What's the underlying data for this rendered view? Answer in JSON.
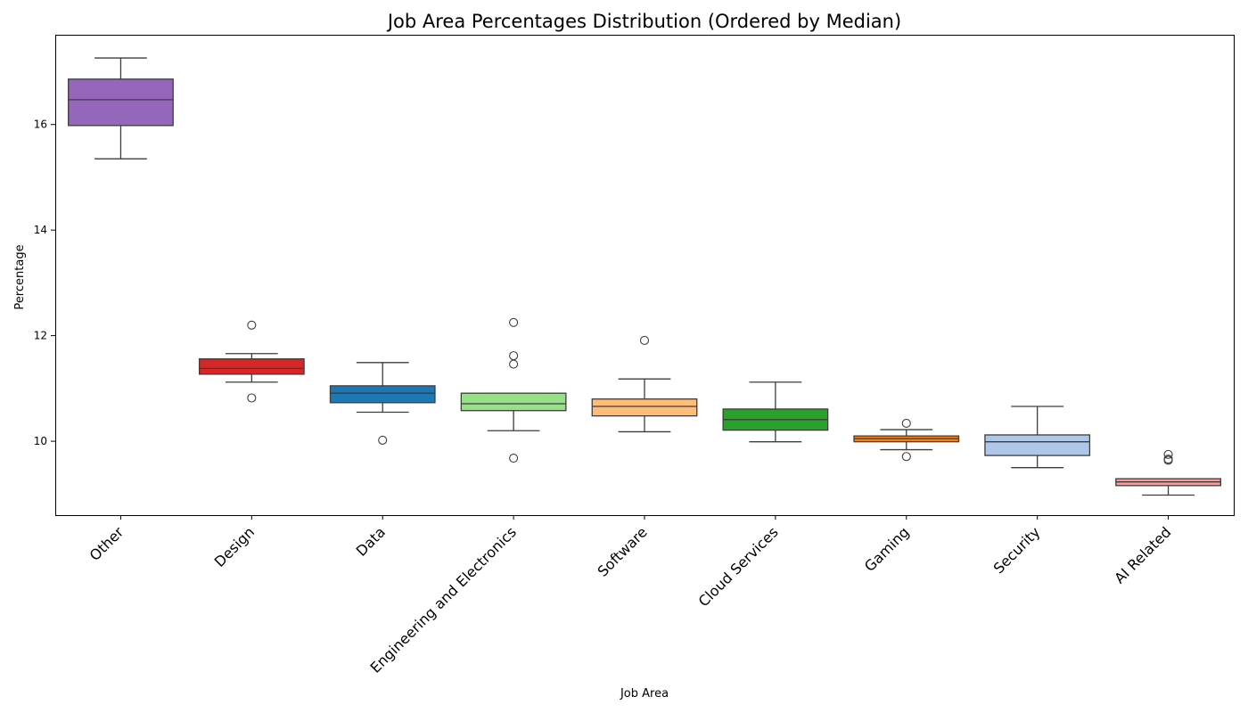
{
  "chart_data": {
    "type": "box",
    "title": "Job Area Percentages Distribution (Ordered by Median)",
    "xlabel": "Job Area",
    "ylabel": "Percentage",
    "ylim": [
      8.6,
      17.7
    ],
    "yticks": [
      10,
      12,
      14,
      16
    ],
    "grid": false,
    "categories": [
      "Other",
      "Design",
      "Data",
      "Engineering and Electronics",
      "Software",
      "Cloud Services",
      "Gaming",
      "Security",
      "AI Related"
    ],
    "boxes": [
      {
        "category": "Other",
        "whisker_low": 15.35,
        "q1": 15.98,
        "median": 16.47,
        "q3": 16.86,
        "whisker_high": 17.26,
        "outliers": [],
        "color": "#9467bd"
      },
      {
        "category": "Design",
        "whisker_low": 11.12,
        "q1": 11.27,
        "median": 11.38,
        "q3": 11.56,
        "whisker_high": 11.66,
        "outliers": [
          12.2,
          10.82
        ],
        "color": "#d62728"
      },
      {
        "category": "Data",
        "whisker_low": 10.55,
        "q1": 10.73,
        "median": 10.91,
        "q3": 11.05,
        "whisker_high": 11.49,
        "outliers": [
          10.02
        ],
        "color": "#1f77b4"
      },
      {
        "category": "Engineering and Electronics",
        "whisker_low": 10.2,
        "q1": 10.58,
        "median": 10.71,
        "q3": 10.91,
        "whisker_high": 10.91,
        "outliers": [
          12.25,
          11.62,
          11.46,
          9.68
        ],
        "color": "#98df8a"
      },
      {
        "category": "Software",
        "whisker_low": 10.18,
        "q1": 10.48,
        "median": 10.66,
        "q3": 10.8,
        "whisker_high": 11.18,
        "outliers": [
          11.91
        ],
        "color": "#ffbb78"
      },
      {
        "category": "Cloud Services",
        "whisker_low": 9.99,
        "q1": 10.21,
        "median": 10.41,
        "q3": 10.61,
        "whisker_high": 11.12,
        "outliers": [],
        "color": "#2ca02c"
      },
      {
        "category": "Gaming",
        "whisker_low": 9.84,
        "q1": 9.99,
        "median": 10.05,
        "q3": 10.1,
        "whisker_high": 10.22,
        "outliers": [
          10.34,
          9.71
        ],
        "color": "#ff7f0e"
      },
      {
        "category": "Security",
        "whisker_low": 9.5,
        "q1": 9.73,
        "median": 9.99,
        "q3": 10.12,
        "whisker_high": 10.66,
        "outliers": [],
        "color": "#aec7e8"
      },
      {
        "category": "AI Related",
        "whisker_low": 8.98,
        "q1": 9.16,
        "median": 9.23,
        "q3": 9.29,
        "whisker_high": 9.29,
        "outliers": [
          9.75,
          9.66,
          9.64
        ],
        "color": "#ff9896"
      }
    ]
  }
}
